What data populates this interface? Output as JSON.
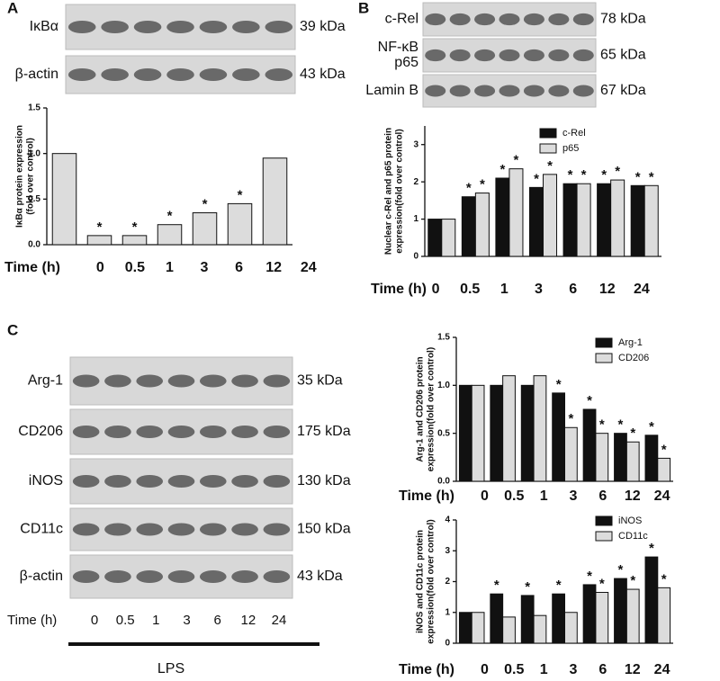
{
  "figure": {
    "panel_labels": [
      "A",
      "B",
      "C"
    ]
  },
  "blots": {
    "A": {
      "bands": [
        {
          "label": [
            "IκBα"
          ],
          "size": "39 kDa"
        },
        {
          "label": [
            "β-actin"
          ],
          "size": "43 kDa"
        }
      ]
    },
    "B": {
      "bands": [
        {
          "label": [
            "c-Rel"
          ],
          "size": "78 kDa"
        },
        {
          "label": [
            "NF-κB",
            "p65"
          ],
          "size": "65 kDa"
        },
        {
          "label": [
            "Lamin B"
          ],
          "size": "67 kDa"
        }
      ]
    },
    "C": {
      "bands": [
        {
          "label": [
            "Arg-1"
          ],
          "size": "35 kDa"
        },
        {
          "label": [
            "CD206"
          ],
          "size": "175 kDa"
        },
        {
          "label": [
            "iNOS"
          ],
          "size": "130 kDa"
        },
        {
          "label": [
            "CD11c"
          ],
          "size": "150 kDa"
        },
        {
          "label": [
            "β-actin"
          ],
          "size": "43 kDa"
        }
      ],
      "time_label": "Time (h)",
      "times": [
        "0",
        "0.5",
        "1",
        "3",
        "6",
        "12",
        "24"
      ],
      "treatment": "LPS"
    }
  },
  "chart_data": [
    {
      "type": "bar",
      "ylabel": [
        "IκBα protein expression",
        "(fold over control)"
      ],
      "xlabel": "Time (h)",
      "categories": [
        "0",
        "0.5",
        "1",
        "3",
        "6",
        "12",
        "24"
      ],
      "series": [
        {
          "color": "#dcdcdc",
          "values": [
            1.0,
            0.1,
            0.1,
            0.22,
            0.35,
            0.45,
            0.95
          ],
          "markers": [
            null,
            "*",
            "*",
            "*",
            "*",
            "*",
            null
          ]
        }
      ],
      "ylim": [
        0,
        1.5
      ],
      "yticks": [
        {
          "value": 0,
          "label": "0.0"
        },
        0.5,
        {
          "value": 1,
          "label": "1.0"
        },
        1.5
      ]
    },
    {
      "type": "bar",
      "ylabel": [
        "Nuclear c-Rel and p65 protein",
        "expression(fold over control)"
      ],
      "xlabel": "Time (h)",
      "categories": [
        "0",
        "0.5",
        "1",
        "3",
        "6",
        "12",
        "24"
      ],
      "series": [
        {
          "name": "c-Rel",
          "color": "#111111",
          "values": [
            1.0,
            1.6,
            2.1,
            1.85,
            1.95,
            1.95,
            1.9
          ],
          "markers": [
            null,
            "*",
            "*",
            "*",
            "*",
            "*",
            "*"
          ]
        },
        {
          "name": "p65",
          "color": "#dcdcdc",
          "values": [
            1.0,
            1.7,
            2.35,
            2.2,
            1.95,
            2.05,
            1.9
          ],
          "markers": [
            null,
            "*",
            "*",
            "*",
            "*",
            "*",
            "*"
          ]
        }
      ],
      "ylim": [
        0,
        3.5
      ],
      "yticks": [
        0,
        1,
        2,
        3
      ]
    },
    {
      "type": "bar",
      "ylabel": [
        "Arg-1 and CD206 protein",
        "expression(fold over control)"
      ],
      "xlabel": "Time (h)",
      "categories": [
        "0",
        "0.5",
        "1",
        "3",
        "6",
        "12",
        "24"
      ],
      "series": [
        {
          "name": "Arg-1",
          "color": "#111111",
          "values": [
            1.0,
            1.0,
            1.0,
            0.92,
            0.75,
            0.5,
            0.48
          ],
          "markers": [
            null,
            null,
            null,
            "*",
            "*",
            "*",
            "*"
          ]
        },
        {
          "name": "CD206",
          "color": "#dcdcdc",
          "values": [
            1.0,
            1.1,
            1.1,
            0.56,
            0.5,
            0.41,
            0.24
          ],
          "markers": [
            null,
            null,
            null,
            "*",
            "*",
            "*",
            "*"
          ]
        }
      ],
      "ylim": [
        0,
        1.5
      ],
      "yticks": [
        {
          "value": 0,
          "label": "0.0"
        },
        0.5,
        {
          "value": 1,
          "label": "1.0"
        },
        1.5
      ]
    },
    {
      "type": "bar",
      "ylabel": [
        "iNOS and CD11c protein",
        "expression(fold over control)"
      ],
      "xlabel": "Time (h)",
      "categories": [
        "0",
        "0.5",
        "1",
        "3",
        "6",
        "12",
        "24"
      ],
      "series": [
        {
          "name": "iNOS",
          "color": "#111111",
          "values": [
            1.0,
            1.6,
            1.55,
            1.6,
            1.9,
            2.1,
            2.8
          ],
          "markers": [
            null,
            "*",
            "*",
            "*",
            "*",
            "*",
            "*"
          ]
        },
        {
          "name": "CD11c",
          "color": "#dcdcdc",
          "values": [
            1.0,
            0.85,
            0.9,
            1.0,
            1.65,
            1.75,
            1.8
          ],
          "markers": [
            null,
            null,
            null,
            null,
            "*",
            "*",
            "*"
          ]
        }
      ],
      "ylim": [
        0,
        4
      ],
      "yticks": [
        0,
        1,
        2,
        3,
        4
      ]
    }
  ]
}
